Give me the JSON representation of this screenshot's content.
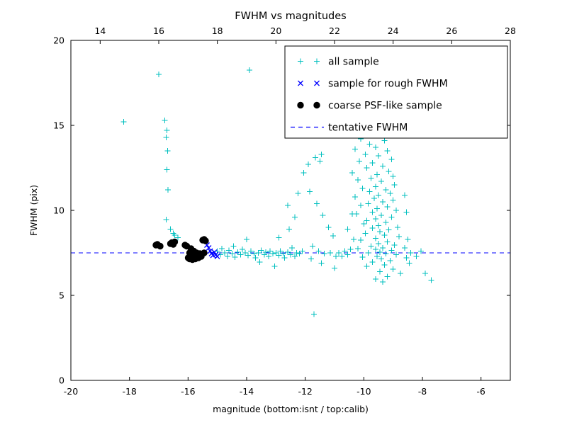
{
  "figure": {
    "title": "FWHM vs magnitudes",
    "xlabel": "magnitude (bottom:isnt / top:calib)",
    "ylabel": "FWHM (pix)"
  },
  "chart_data": {
    "type": "scatter",
    "title": "FWHM vs magnitudes",
    "xlabel": "magnitude (bottom:isnt / top:calib)",
    "ylabel": "FWHM (pix)",
    "xlim": [
      -20,
      -5
    ],
    "ylim": [
      0,
      20
    ],
    "x_ticks_bottom": [
      -20,
      -18,
      -16,
      -14,
      -12,
      -10,
      -8,
      -6
    ],
    "top_axis": {
      "lim": [
        13,
        28
      ],
      "ticks": [
        14,
        16,
        18,
        20,
        22,
        24,
        26,
        28
      ]
    },
    "y_ticks": [
      0,
      5,
      10,
      15,
      20
    ],
    "grid": false,
    "legend_position": "upper right",
    "hline": {
      "y": 7.5,
      "color": "#0000ff",
      "style": "dashed",
      "label": "tentative FWHM"
    },
    "colors": {
      "all_sample": "#00bfbf",
      "rough_fwhm": "#0000ff",
      "psf_like": "#000000",
      "tentative": "#0000ff"
    },
    "series": [
      {
        "name": "all sample",
        "marker": "plus",
        "color": "#00bfbf",
        "points": [
          [
            -18.2,
            15.2
          ],
          [
            -17.0,
            18.0
          ],
          [
            -16.8,
            15.3
          ],
          [
            -16.72,
            14.7
          ],
          [
            -16.75,
            14.3
          ],
          [
            -16.7,
            13.5
          ],
          [
            -16.72,
            12.4
          ],
          [
            -16.68,
            11.2
          ],
          [
            -16.74,
            9.45
          ],
          [
            -16.6,
            8.9
          ],
          [
            -16.5,
            8.65
          ],
          [
            -16.45,
            8.55
          ],
          [
            -16.35,
            8.4
          ],
          [
            -13.9,
            18.25
          ],
          [
            -15.0,
            7.6
          ],
          [
            -14.9,
            7.4
          ],
          [
            -14.85,
            7.75
          ],
          [
            -14.75,
            7.5
          ],
          [
            -14.65,
            7.3
          ],
          [
            -14.6,
            7.65
          ],
          [
            -14.5,
            7.45
          ],
          [
            -14.45,
            7.9
          ],
          [
            -14.4,
            7.25
          ],
          [
            -14.3,
            7.55
          ],
          [
            -14.2,
            7.4
          ],
          [
            -14.15,
            7.7
          ],
          [
            -14.05,
            7.5
          ],
          [
            -14.0,
            8.3
          ],
          [
            -13.95,
            7.35
          ],
          [
            -13.85,
            7.6
          ],
          [
            -13.75,
            7.45
          ],
          [
            -13.7,
            7.2
          ],
          [
            -13.6,
            7.5
          ],
          [
            -13.55,
            6.95
          ],
          [
            -13.5,
            7.65
          ],
          [
            -13.4,
            7.4
          ],
          [
            -13.35,
            7.55
          ],
          [
            -13.25,
            7.3
          ],
          [
            -13.2,
            7.6
          ],
          [
            -13.1,
            7.45
          ],
          [
            -13.05,
            6.7
          ],
          [
            -13.0,
            7.5
          ],
          [
            -12.9,
            7.35
          ],
          [
            -12.85,
            7.6
          ],
          [
            -12.75,
            7.45
          ],
          [
            -12.7,
            7.2
          ],
          [
            -12.6,
            7.55
          ],
          [
            -12.5,
            7.4
          ],
          [
            -12.45,
            7.8
          ],
          [
            -12.35,
            7.3
          ],
          [
            -12.3,
            7.5
          ],
          [
            -12.2,
            7.45
          ],
          [
            -12.1,
            7.6
          ],
          [
            -12.9,
            8.4
          ],
          [
            -12.55,
            8.9
          ],
          [
            -12.35,
            9.6
          ],
          [
            -12.6,
            10.3
          ],
          [
            -12.25,
            11.0
          ],
          [
            -12.05,
            12.2
          ],
          [
            -11.9,
            12.7
          ],
          [
            -11.65,
            13.1
          ],
          [
            -11.5,
            12.9
          ],
          [
            -11.45,
            13.3
          ],
          [
            -11.85,
            11.1
          ],
          [
            -11.6,
            10.4
          ],
          [
            -11.4,
            9.7
          ],
          [
            -11.2,
            9.0
          ],
          [
            -11.05,
            8.5
          ],
          [
            -11.75,
            7.9
          ],
          [
            -11.55,
            7.6
          ],
          [
            -11.35,
            7.45
          ],
          [
            -11.15,
            7.5
          ],
          [
            -10.95,
            7.3
          ],
          [
            -11.8,
            7.15
          ],
          [
            -11.45,
            6.9
          ],
          [
            -11.0,
            6.6
          ],
          [
            -11.7,
            3.9
          ],
          [
            -10.85,
            7.5
          ],
          [
            -10.75,
            7.3
          ],
          [
            -10.65,
            7.6
          ],
          [
            -10.55,
            7.4
          ],
          [
            -10.45,
            7.7
          ],
          [
            -10.55,
            8.9
          ],
          [
            -10.4,
            9.8
          ],
          [
            -10.35,
            8.3
          ],
          [
            -9.9,
            14.85
          ],
          [
            -9.7,
            14.6
          ],
          [
            -9.5,
            14.4
          ],
          [
            -10.1,
            14.2
          ],
          [
            -9.3,
            14.1
          ],
          [
            -9.8,
            13.9
          ],
          [
            -9.6,
            13.7
          ],
          [
            -10.3,
            13.6
          ],
          [
            -9.2,
            13.5
          ],
          [
            -9.95,
            13.3
          ],
          [
            -9.5,
            13.2
          ],
          [
            -9.05,
            13.0
          ],
          [
            -10.15,
            12.9
          ],
          [
            -9.7,
            12.8
          ],
          [
            -9.35,
            12.6
          ],
          [
            -9.9,
            12.5
          ],
          [
            -9.15,
            12.3
          ],
          [
            -10.4,
            12.2
          ],
          [
            -9.55,
            12.1
          ],
          [
            -9.0,
            12.0
          ],
          [
            -9.75,
            11.9
          ],
          [
            -10.2,
            11.8
          ],
          [
            -9.4,
            11.7
          ],
          [
            -8.95,
            11.5
          ],
          [
            -9.6,
            11.4
          ],
          [
            -10.05,
            11.3
          ],
          [
            -9.25,
            11.2
          ],
          [
            -9.8,
            11.1
          ],
          [
            -9.1,
            11.0
          ],
          [
            -9.5,
            10.9
          ],
          [
            -10.3,
            10.8
          ],
          [
            -9.65,
            10.7
          ],
          [
            -9.0,
            10.6
          ],
          [
            -9.35,
            10.5
          ],
          [
            -9.85,
            10.4
          ],
          [
            -10.1,
            10.3
          ],
          [
            -9.2,
            10.2
          ],
          [
            -9.55,
            10.1
          ],
          [
            -8.9,
            10.0
          ],
          [
            -9.7,
            9.9
          ],
          [
            -10.25,
            9.8
          ],
          [
            -9.4,
            9.7
          ],
          [
            -9.05,
            9.6
          ],
          [
            -9.6,
            9.5
          ],
          [
            -9.9,
            9.4
          ],
          [
            -9.25,
            9.3
          ],
          [
            -10.0,
            9.2
          ],
          [
            -9.5,
            9.1
          ],
          [
            -8.85,
            9.0
          ],
          [
            -9.7,
            8.95
          ],
          [
            -9.15,
            8.85
          ],
          [
            -9.45,
            8.75
          ],
          [
            -9.95,
            8.65
          ],
          [
            -9.3,
            8.55
          ],
          [
            -8.8,
            8.45
          ],
          [
            -9.6,
            8.35
          ],
          [
            -10.1,
            8.25
          ],
          [
            -9.2,
            8.15
          ],
          [
            -9.5,
            8.05
          ],
          [
            -8.95,
            7.95
          ],
          [
            -9.75,
            7.9
          ],
          [
            -9.35,
            7.8
          ],
          [
            -10.2,
            7.75
          ],
          [
            -9.6,
            7.7
          ],
          [
            -9.05,
            7.65
          ],
          [
            -9.45,
            7.55
          ],
          [
            -9.85,
            7.5
          ],
          [
            -9.25,
            7.45
          ],
          [
            -8.9,
            7.4
          ],
          [
            -9.55,
            7.3
          ],
          [
            -10.05,
            7.25
          ],
          [
            -9.4,
            7.15
          ],
          [
            -9.1,
            7.05
          ],
          [
            -9.7,
            6.95
          ],
          [
            -9.3,
            6.8
          ],
          [
            -9.9,
            6.7
          ],
          [
            -9.0,
            6.55
          ],
          [
            -9.45,
            6.4
          ],
          [
            -8.75,
            6.3
          ],
          [
            -9.2,
            6.1
          ],
          [
            -9.6,
            5.95
          ],
          [
            -9.35,
            5.8
          ],
          [
            -8.6,
            10.9
          ],
          [
            -8.55,
            9.9
          ],
          [
            -8.6,
            7.8
          ],
          [
            -8.55,
            7.2
          ],
          [
            -8.5,
            8.3
          ],
          [
            -8.45,
            6.9
          ],
          [
            -8.4,
            7.5
          ],
          [
            -8.2,
            7.3
          ],
          [
            -8.05,
            7.6
          ],
          [
            -7.9,
            6.3
          ],
          [
            -7.7,
            5.9
          ]
        ]
      },
      {
        "name": "sample for rough FWHM",
        "marker": "x",
        "color": "#0000ff",
        "points": [
          [
            -15.35,
            7.95
          ],
          [
            -15.3,
            7.8
          ],
          [
            -15.25,
            7.6
          ],
          [
            -15.2,
            7.45
          ],
          [
            -15.15,
            7.35
          ],
          [
            -15.1,
            7.55
          ],
          [
            -15.05,
            7.4
          ],
          [
            -15.0,
            7.3
          ]
        ]
      },
      {
        "name": "coarse PSF-like sample",
        "marker": "circle",
        "color": "#000000",
        "points": [
          [
            -17.1,
            7.95
          ],
          [
            -17.05,
            8.0
          ],
          [
            -16.95,
            7.9
          ],
          [
            -16.6,
            8.05
          ],
          [
            -16.55,
            8.1
          ],
          [
            -16.5,
            8.0
          ],
          [
            -16.45,
            8.15
          ],
          [
            -16.1,
            7.95
          ],
          [
            -16.05,
            7.9
          ],
          [
            -16.0,
            7.2
          ],
          [
            -15.95,
            7.15
          ],
          [
            -15.95,
            7.5
          ],
          [
            -15.9,
            7.25
          ],
          [
            -15.9,
            7.75
          ],
          [
            -15.85,
            7.1
          ],
          [
            -15.85,
            7.45
          ],
          [
            -15.8,
            7.2
          ],
          [
            -15.8,
            7.6
          ],
          [
            -15.75,
            7.3
          ],
          [
            -15.75,
            7.15
          ],
          [
            -15.7,
            7.5
          ],
          [
            -15.7,
            7.25
          ],
          [
            -15.65,
            7.2
          ],
          [
            -15.6,
            7.45
          ],
          [
            -15.55,
            7.3
          ],
          [
            -15.5,
            8.25
          ],
          [
            -15.45,
            8.3
          ],
          [
            -15.45,
            7.5
          ],
          [
            -15.4,
            8.2
          ]
        ]
      }
    ],
    "legend_entries": [
      "all sample",
      "sample for rough FWHM",
      "coarse PSF-like sample",
      "tentative FWHM"
    ]
  }
}
